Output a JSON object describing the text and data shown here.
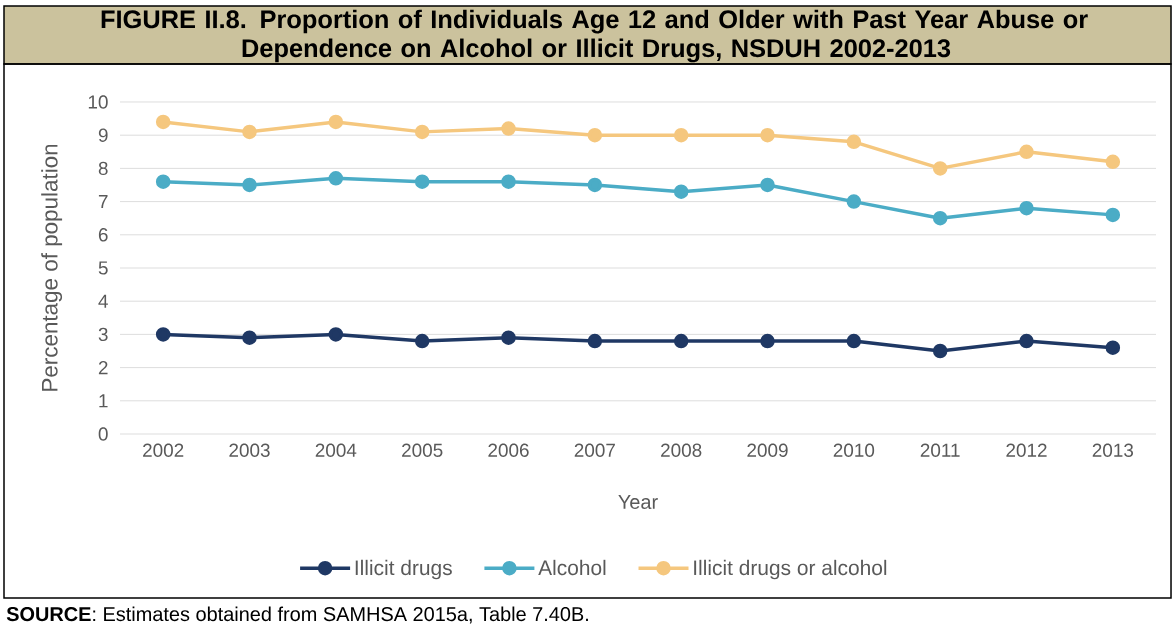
{
  "chart_data": {
    "type": "line",
    "title": "FIGURE II.8. Proportion of Individuals Age 12 and Older with Past Year Abuse or Dependence on Alcohol or Illicit Drugs, NSDUH 2002-2013",
    "xlabel": "Year",
    "ylabel": "Percentage of population",
    "categories": [
      "2002",
      "2003",
      "2004",
      "2005",
      "2006",
      "2007",
      "2008",
      "2009",
      "2010",
      "2011",
      "2012",
      "2013"
    ],
    "series": [
      {
        "name": "Illicit drugs",
        "color": "#1f3864",
        "values": [
          3.0,
          2.9,
          3.0,
          2.8,
          2.9,
          2.8,
          2.8,
          2.8,
          2.8,
          2.5,
          2.8,
          2.6
        ]
      },
      {
        "name": "Alcohol",
        "color": "#4bacc6",
        "values": [
          7.6,
          7.5,
          7.7,
          7.6,
          7.6,
          7.5,
          7.3,
          7.5,
          7.0,
          6.5,
          6.8,
          6.6
        ]
      },
      {
        "name": "Illicit drugs or alcohol",
        "color": "#f5c77e",
        "values": [
          9.4,
          9.1,
          9.4,
          9.1,
          9.2,
          9.0,
          9.0,
          9.0,
          8.8,
          8.0,
          8.5,
          8.2
        ]
      }
    ],
    "ylim": [
      0,
      10
    ],
    "yticks": [
      0,
      1,
      2,
      3,
      4,
      5,
      6,
      7,
      8,
      9,
      10
    ],
    "grid": "y",
    "legend": "bottom",
    "marker": "circle",
    "line_style": "solid",
    "annotations": [
      "**SOURCE**:  Estimates obtained from SAMHSA 2015a, Table 7.40B."
    ]
  }
}
